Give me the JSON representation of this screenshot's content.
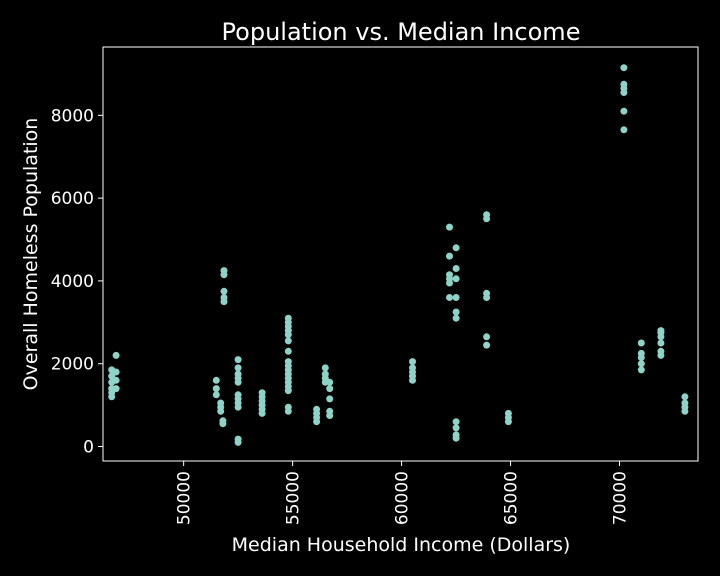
{
  "chart_data": {
    "type": "scatter",
    "title": "Population vs. Median Income",
    "xlabel": "Median Household Income (Dollars)",
    "ylabel": "Overall Homeless Population",
    "xlim": [
      46300,
      73600
    ],
    "ylim": [
      -350,
      9650
    ],
    "xticks": [
      50000,
      55000,
      60000,
      65000,
      70000
    ],
    "yticks": [
      0,
      2000,
      4000,
      6000,
      8000
    ],
    "grid": false,
    "colors": {
      "background": "#000000",
      "point": "#8dd3c7",
      "text": "#ffffff"
    },
    "series": [
      {
        "points": [
          [
            46700,
            1200
          ],
          [
            46700,
            1300
          ],
          [
            46700,
            1400
          ],
          [
            46700,
            1550
          ],
          [
            46700,
            1700
          ],
          [
            46700,
            1850
          ],
          [
            46900,
            1400
          ],
          [
            46900,
            1600
          ],
          [
            46900,
            1800
          ],
          [
            46900,
            2200
          ],
          [
            51500,
            1250
          ],
          [
            51500,
            1400
          ],
          [
            51500,
            1600
          ],
          [
            51700,
            850
          ],
          [
            51700,
            950
          ],
          [
            51700,
            1050
          ],
          [
            51800,
            550
          ],
          [
            51800,
            620
          ],
          [
            51850,
            3500
          ],
          [
            51850,
            3600
          ],
          [
            51850,
            3750
          ],
          [
            51850,
            4150
          ],
          [
            51850,
            4250
          ],
          [
            52500,
            100
          ],
          [
            52500,
            180
          ],
          [
            52500,
            950
          ],
          [
            52500,
            1050
          ],
          [
            52500,
            1150
          ],
          [
            52500,
            1250
          ],
          [
            52500,
            1550
          ],
          [
            52500,
            1650
          ],
          [
            52500,
            1750
          ],
          [
            52500,
            1900
          ],
          [
            52500,
            2100
          ],
          [
            53600,
            800
          ],
          [
            53600,
            900
          ],
          [
            53600,
            1000
          ],
          [
            53600,
            1100
          ],
          [
            53600,
            1200
          ],
          [
            53600,
            1300
          ],
          [
            54800,
            850
          ],
          [
            54800,
            950
          ],
          [
            54800,
            1350
          ],
          [
            54800,
            1450
          ],
          [
            54800,
            1550
          ],
          [
            54800,
            1650
          ],
          [
            54800,
            1750
          ],
          [
            54800,
            1850
          ],
          [
            54800,
            1950
          ],
          [
            54800,
            2050
          ],
          [
            54800,
            2300
          ],
          [
            54800,
            2550
          ],
          [
            54800,
            2700
          ],
          [
            54800,
            2800
          ],
          [
            54800,
            2900
          ],
          [
            54800,
            3000
          ],
          [
            54800,
            3100
          ],
          [
            56100,
            600
          ],
          [
            56100,
            700
          ],
          [
            56100,
            800
          ],
          [
            56100,
            900
          ],
          [
            56500,
            1550
          ],
          [
            56500,
            1650
          ],
          [
            56500,
            1750
          ],
          [
            56500,
            1900
          ],
          [
            56700,
            750
          ],
          [
            56700,
            850
          ],
          [
            56700,
            1150
          ],
          [
            56700,
            1400
          ],
          [
            56700,
            1550
          ],
          [
            60500,
            1600
          ],
          [
            60500,
            1700
          ],
          [
            60500,
            1800
          ],
          [
            60500,
            1900
          ],
          [
            60500,
            2050
          ],
          [
            62200,
            3600
          ],
          [
            62200,
            3950
          ],
          [
            62200,
            4050
          ],
          [
            62200,
            4150
          ],
          [
            62200,
            4600
          ],
          [
            62200,
            5300
          ],
          [
            62500,
            200
          ],
          [
            62500,
            280
          ],
          [
            62500,
            450
          ],
          [
            62500,
            600
          ],
          [
            62500,
            3100
          ],
          [
            62500,
            3250
          ],
          [
            62500,
            3600
          ],
          [
            62500,
            4050
          ],
          [
            62500,
            4300
          ],
          [
            62500,
            4800
          ],
          [
            63900,
            2450
          ],
          [
            63900,
            2650
          ],
          [
            63900,
            3600
          ],
          [
            63900,
            3700
          ],
          [
            63900,
            5500
          ],
          [
            63900,
            5600
          ],
          [
            64900,
            600
          ],
          [
            64900,
            700
          ],
          [
            64900,
            800
          ],
          [
            70200,
            7650
          ],
          [
            70200,
            8100
          ],
          [
            70200,
            8550
          ],
          [
            70200,
            8650
          ],
          [
            70200,
            8750
          ],
          [
            70200,
            9150
          ],
          [
            71000,
            1850
          ],
          [
            71000,
            2000
          ],
          [
            71000,
            2150
          ],
          [
            71000,
            2250
          ],
          [
            71000,
            2500
          ],
          [
            71900,
            2200
          ],
          [
            71900,
            2300
          ],
          [
            71900,
            2500
          ],
          [
            71900,
            2650
          ],
          [
            71900,
            2750
          ],
          [
            71900,
            2800
          ],
          [
            73000,
            850
          ],
          [
            73000,
            950
          ],
          [
            73000,
            1050
          ],
          [
            73000,
            1200
          ]
        ]
      }
    ]
  }
}
